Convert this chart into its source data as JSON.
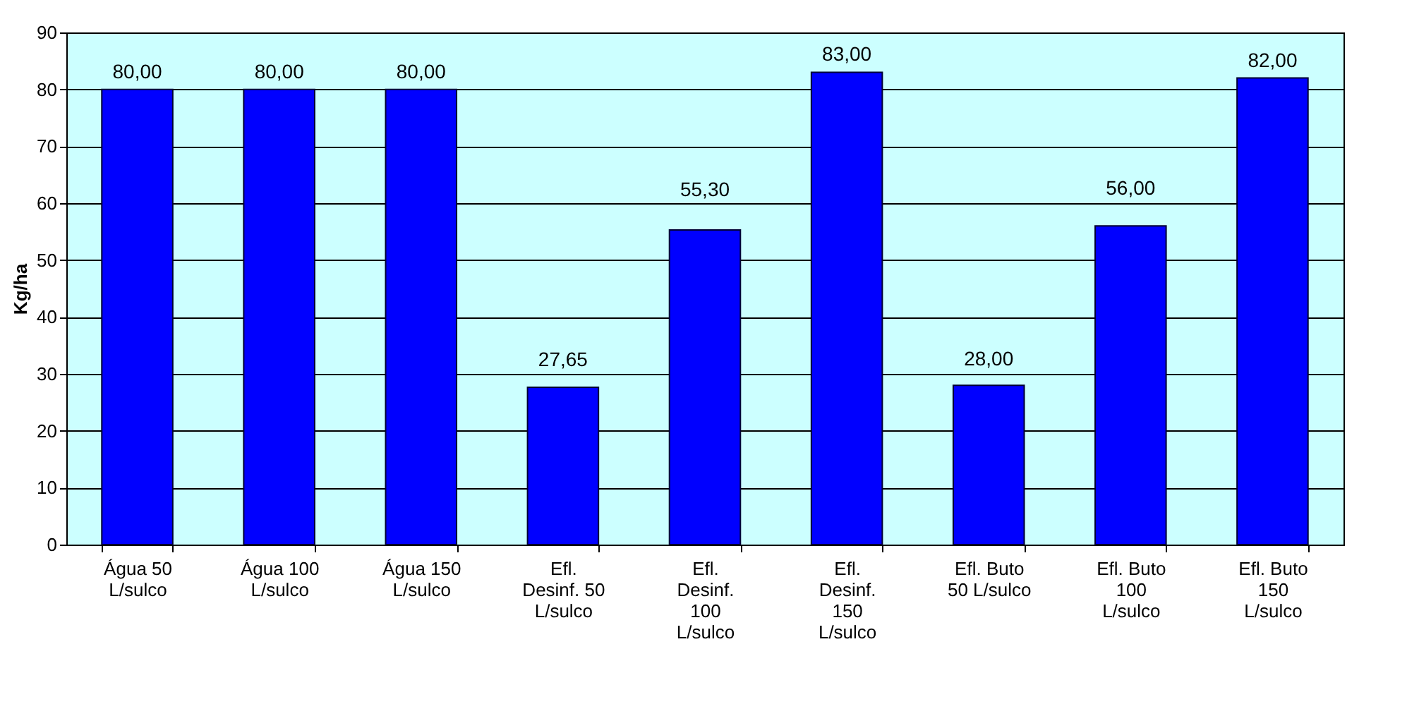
{
  "chart_data": {
    "type": "bar",
    "ylabel": "Kg/ha",
    "categories": [
      "Água 50 L/sulco",
      "Água 100 L/sulco",
      "Água 150 L/sulco",
      "Efl. Desinf. 50 L/sulco",
      "Efl. Desinf. 100 L/sulco",
      "Efl. Desinf. 150 L/sulco",
      "Efl. Buto 50 L/sulco",
      "Efl. Buto 100 L/sulco",
      "Efl. Buto 150 L/sulco"
    ],
    "values": [
      80,
      80,
      80,
      27.65,
      55.3,
      83,
      28,
      56,
      82
    ],
    "value_labels": [
      "80,00",
      "80,00",
      "80,00",
      "27,65",
      "55,30",
      "83,00",
      "28,00",
      "56,00",
      "82,00"
    ],
    "color": "#0000ff",
    "ylim": [
      0,
      90
    ],
    "yticks": [
      0,
      10,
      20,
      30,
      40,
      50,
      60,
      70,
      80,
      90
    ],
    "grid": "y"
  }
}
